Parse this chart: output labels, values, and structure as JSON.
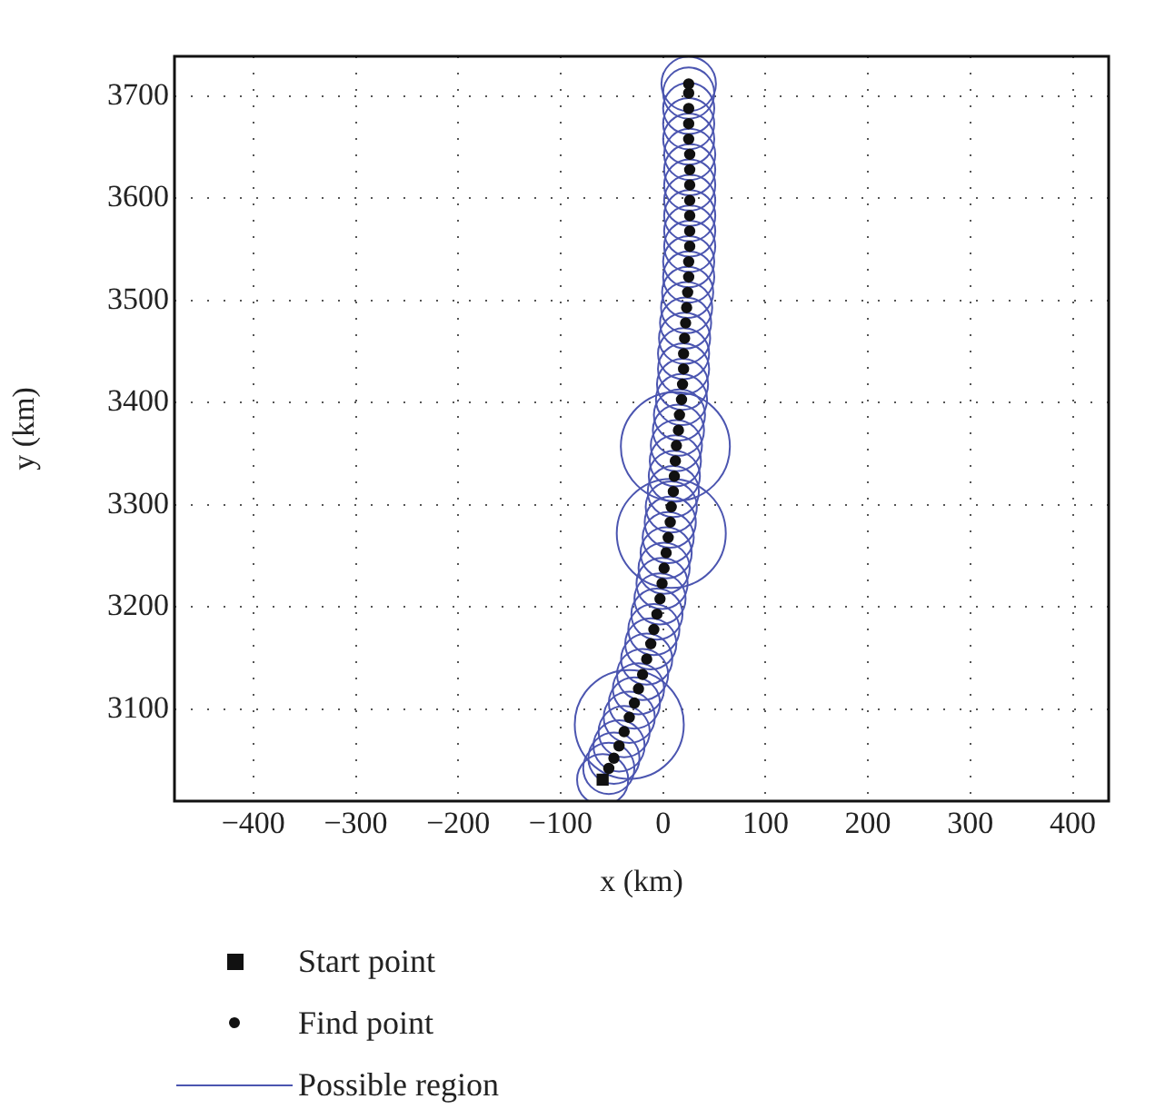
{
  "chart_data": {
    "type": "scatter",
    "xlabel": "x (km)",
    "ylabel": "y (km)",
    "xlim": [
      -477,
      435
    ],
    "xticks": [
      {
        "value": -400,
        "label": "−400"
      },
      {
        "value": -300,
        "label": "−300"
      },
      {
        "value": -200,
        "label": "−200"
      },
      {
        "value": -100,
        "label": "−100"
      },
      0,
      100,
      200,
      300,
      400
    ],
    "ylim": [
      3010,
      3739
    ],
    "yticks": [
      3100,
      3200,
      3300,
      3400,
      3500,
      3600,
      3700
    ],
    "grid": true,
    "legend": "bottom",
    "series": [
      {
        "name": "Possible region",
        "type": "bubble",
        "color": "#4b55b0",
        "x": [
          -59,
          -53,
          -48,
          -43,
          -38,
          -33,
          -28,
          -24,
          -20,
          -16,
          -12,
          -9,
          -6,
          -3,
          -1,
          1,
          3,
          5,
          7,
          8,
          10,
          11,
          12,
          13,
          15,
          16,
          18,
          19,
          20,
          20,
          21,
          22,
          23,
          24,
          25,
          25,
          26,
          26,
          26,
          26,
          26,
          26,
          26,
          25,
          25,
          25,
          25,
          25,
          -33,
          8,
          12
        ],
        "values": [
          3031,
          3042,
          3052,
          3064,
          3078,
          3092,
          3106,
          3120,
          3134,
          3149,
          3164,
          3178,
          3193,
          3208,
          3223,
          3238,
          3253,
          3268,
          3283,
          3298,
          3313,
          3328,
          3343,
          3358,
          3373,
          3388,
          3403,
          3418,
          3433,
          3448,
          3463,
          3478,
          3493,
          3508,
          3523,
          3538,
          3553,
          3568,
          3583,
          3598,
          3613,
          3628,
          3643,
          3658,
          3673,
          3688,
          3703,
          3712,
          3085,
          3272,
          3357
        ],
        "sizes": [
          0.22,
          0.22,
          0.22,
          0.22,
          0.22,
          0.22,
          0.22,
          0.22,
          0.22,
          0.22,
          0.22,
          0.22,
          0.22,
          0.22,
          0.22,
          0.22,
          0.22,
          0.22,
          0.22,
          0.22,
          0.22,
          0.22,
          0.22,
          0.22,
          0.22,
          0.22,
          0.22,
          0.22,
          0.22,
          0.22,
          0.22,
          0.22,
          0.22,
          0.22,
          0.22,
          0.22,
          0.22,
          0.22,
          0.22,
          0.22,
          0.22,
          0.22,
          0.22,
          0.22,
          0.22,
          0.22,
          0.22,
          0.25,
          1,
          1,
          1
        ]
      },
      {
        "name": "Find point",
        "type": "scatter",
        "color": "#111111",
        "marker": "circle",
        "x": [
          -53,
          -48,
          -43,
          -38,
          -33,
          -28,
          -24,
          -20,
          -16,
          -12,
          -9,
          -6,
          -3,
          -1,
          1,
          3,
          5,
          7,
          8,
          10,
          11,
          12,
          13,
          15,
          16,
          18,
          19,
          20,
          20,
          21,
          22,
          23,
          24,
          25,
          25,
          26,
          26,
          26,
          26,
          26,
          26,
          26,
          25,
          25,
          25,
          25,
          25
        ],
        "values": [
          3042,
          3052,
          3064,
          3078,
          3092,
          3106,
          3120,
          3134,
          3149,
          3164,
          3178,
          3193,
          3208,
          3223,
          3238,
          3253,
          3268,
          3283,
          3298,
          3313,
          3328,
          3343,
          3358,
          3373,
          3388,
          3403,
          3418,
          3433,
          3448,
          3463,
          3478,
          3493,
          3508,
          3523,
          3538,
          3553,
          3568,
          3583,
          3598,
          3613,
          3628,
          3643,
          3658,
          3673,
          3688,
          3703,
          3712
        ]
      },
      {
        "name": "Start point",
        "type": "scatter",
        "color": "#111111",
        "marker": "square",
        "x": [
          -59
        ],
        "values": [
          3031
        ]
      }
    ]
  }
}
